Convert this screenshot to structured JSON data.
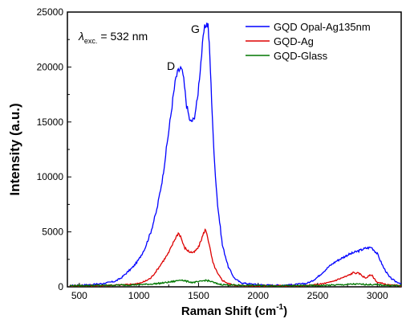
{
  "chart_data": {
    "type": "line",
    "xlabel": "Raman Shift (cm",
    "xlabel_sup": "-1",
    "xlabel_end": ")",
    "ylabel": "Intensity (a.u.)",
    "xlim": [
      400,
      3200
    ],
    "ylim": [
      0,
      25000
    ],
    "x_ticks": [
      500,
      1000,
      1500,
      2000,
      2500,
      3000
    ],
    "y_ticks": [
      0,
      5000,
      10000,
      15000,
      20000,
      25000
    ],
    "legend_position": "top-right",
    "annotations": {
      "lambda_symbol": "λ",
      "lambda_sub": "exc.",
      "lambda_value": "= 532 nm",
      "peak_d": "D",
      "peak_g": "G"
    },
    "series": [
      {
        "name": "GQD Opal-Ag135nm",
        "color": "#0000ff",
        "x": [
          420,
          500,
          600,
          700,
          750,
          800,
          850,
          900,
          950,
          1000,
          1050,
          1100,
          1150,
          1200,
          1230,
          1260,
          1290,
          1310,
          1330,
          1350,
          1370,
          1400,
          1430,
          1460,
          1490,
          1520,
          1545,
          1565,
          1580,
          1595,
          1610,
          1630,
          1660,
          1700,
          1750,
          1800,
          1850,
          1900,
          1950,
          2000,
          2100,
          2200,
          2300,
          2400,
          2450,
          2500,
          2550,
          2600,
          2650,
          2700,
          2750,
          2800,
          2850,
          2900,
          2950,
          3000,
          3050,
          3100,
          3150,
          3200
        ],
        "y": [
          100,
          150,
          200,
          300,
          400,
          500,
          800,
          1300,
          1800,
          2500,
          3500,
          5000,
          7000,
          10000,
          12500,
          15000,
          17500,
          19000,
          19600,
          19900,
          19300,
          16500,
          15000,
          15200,
          17000,
          20500,
          23200,
          24000,
          23800,
          21000,
          17000,
          12000,
          7500,
          3800,
          1800,
          800,
          400,
          300,
          250,
          200,
          150,
          150,
          200,
          300,
          500,
          900,
          1400,
          1900,
          2300,
          2600,
          2900,
          3100,
          3300,
          3500,
          3600,
          3000,
          1800,
          900,
          500,
          300
        ]
      },
      {
        "name": "GQD-Ag",
        "color": "#dd0000",
        "x": [
          420,
          600,
          800,
          900,
          1000,
          1050,
          1100,
          1150,
          1200,
          1250,
          1300,
          1330,
          1350,
          1380,
          1420,
          1460,
          1500,
          1530,
          1555,
          1570,
          1590,
          1620,
          1660,
          1700,
          1750,
          1800,
          1900,
          2000,
          2200,
          2400,
          2500,
          2600,
          2650,
          2700,
          2750,
          2800,
          2850,
          2900,
          2950,
          3000,
          3100,
          3200
        ],
        "y": [
          100,
          100,
          150,
          200,
          300,
          500,
          800,
          1500,
          2300,
          3100,
          4300,
          4900,
          4600,
          3600,
          3200,
          3100,
          3600,
          4500,
          5200,
          4900,
          3800,
          2200,
          1200,
          600,
          300,
          150,
          100,
          100,
          100,
          100,
          200,
          400,
          600,
          800,
          1000,
          1300,
          1200,
          800,
          1100,
          400,
          150,
          100
        ]
      },
      {
        "name": "GQD-Glass",
        "color": "#007700",
        "x": [
          420,
          600,
          800,
          1000,
          1100,
          1200,
          1300,
          1350,
          1400,
          1450,
          1500,
          1560,
          1600,
          1650,
          1700,
          1800,
          2000,
          2200,
          2500,
          2700,
          2800,
          2900,
          3000,
          3100,
          3200
        ],
        "y": [
          100,
          120,
          150,
          200,
          250,
          350,
          500,
          650,
          500,
          400,
          450,
          600,
          500,
          300,
          200,
          150,
          120,
          100,
          120,
          180,
          250,
          220,
          180,
          130,
          100
        ]
      }
    ]
  }
}
